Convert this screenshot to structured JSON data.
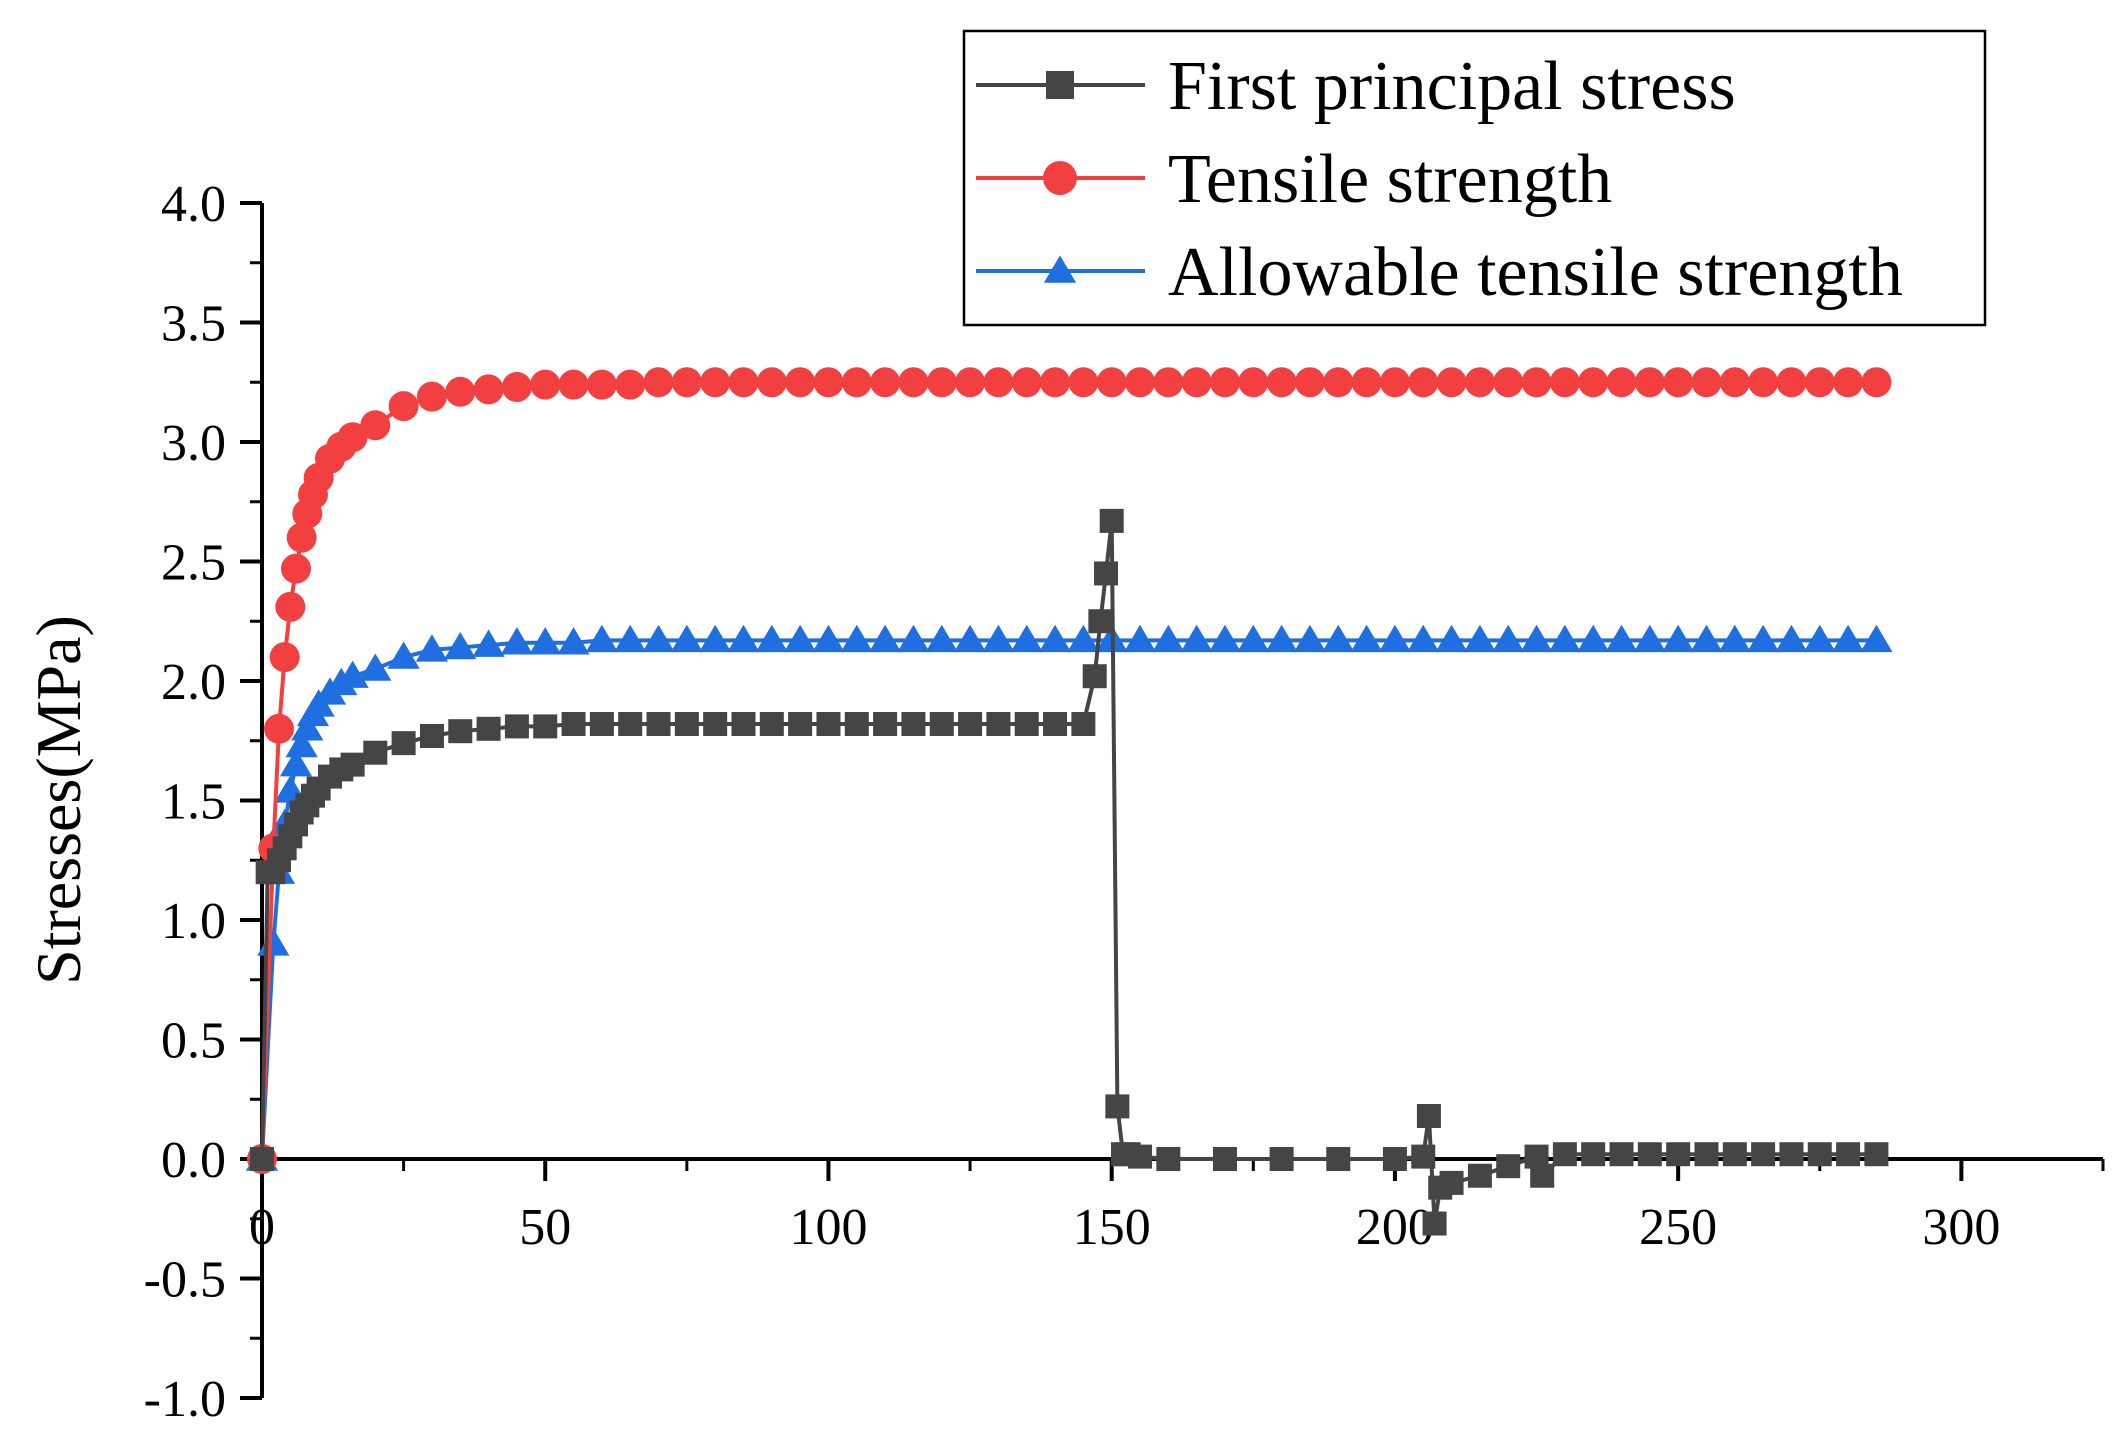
{
  "chart_data": {
    "type": "line",
    "title": "",
    "xlabel": "",
    "ylabel": "Stresses(MPa)",
    "xlim": [
      0,
      325
    ],
    "ylim": [
      -1.0,
      4.0
    ],
    "xticks": [
      0,
      50,
      100,
      150,
      200,
      250,
      300
    ],
    "xtick_labels": [
      "0",
      "50",
      "100",
      "150",
      "200",
      "250",
      "300"
    ],
    "yticks": [
      -1.0,
      -0.5,
      0.0,
      0.5,
      1.0,
      1.5,
      2.0,
      2.5,
      3.0,
      3.5,
      4.0
    ],
    "ytick_labels": [
      "-1.0",
      "-0.5",
      "0.0",
      "0.5",
      "1.0",
      "1.5",
      "2.0",
      "2.5",
      "3.0",
      "3.5",
      "4.0"
    ],
    "grid": false,
    "legend_position": "top-right",
    "series": [
      {
        "name": "First principal stress",
        "color": "#454545",
        "marker": "square",
        "x": [
          0,
          1,
          2,
          3,
          4,
          5,
          6,
          7,
          8,
          9,
          10,
          12,
          14,
          16,
          20,
          25,
          30,
          35,
          40,
          45,
          50,
          55,
          60,
          65,
          70,
          75,
          80,
          85,
          90,
          95,
          100,
          105,
          110,
          115,
          120,
          125,
          130,
          135,
          140,
          145,
          147,
          148,
          149,
          150,
          151,
          152,
          153,
          155,
          160,
          170,
          180,
          190,
          200,
          205,
          206,
          207,
          208,
          210,
          215,
          220,
          225,
          226,
          230,
          235,
          240,
          245,
          250,
          255,
          260,
          265,
          270,
          275,
          280,
          285
        ],
        "y": [
          0.0,
          1.2,
          1.2,
          1.25,
          1.3,
          1.35,
          1.4,
          1.45,
          1.48,
          1.52,
          1.55,
          1.6,
          1.63,
          1.65,
          1.7,
          1.74,
          1.77,
          1.79,
          1.8,
          1.81,
          1.81,
          1.82,
          1.82,
          1.82,
          1.82,
          1.82,
          1.82,
          1.82,
          1.82,
          1.82,
          1.82,
          1.82,
          1.82,
          1.82,
          1.82,
          1.82,
          1.82,
          1.82,
          1.82,
          1.82,
          2.02,
          2.25,
          2.45,
          2.67,
          0.22,
          0.02,
          0.02,
          0.01,
          0.0,
          0.0,
          0.0,
          0.0,
          0.0,
          0.01,
          0.18,
          -0.27,
          -0.12,
          -0.1,
          -0.07,
          -0.03,
          0.01,
          -0.07,
          0.02,
          0.02,
          0.02,
          0.02,
          0.02,
          0.02,
          0.02,
          0.02,
          0.02,
          0.02,
          0.02,
          0.02
        ]
      },
      {
        "name": "Tensile strength",
        "color": "#f24040",
        "marker": "circle",
        "x": [
          0,
          2,
          3,
          4,
          5,
          6,
          7,
          8,
          9,
          10,
          12,
          14,
          16,
          20,
          25,
          30,
          35,
          40,
          45,
          50,
          55,
          60,
          65,
          70,
          75,
          80,
          85,
          90,
          95,
          100,
          105,
          110,
          115,
          120,
          125,
          130,
          135,
          140,
          145,
          150,
          155,
          160,
          165,
          170,
          175,
          180,
          185,
          190,
          195,
          200,
          205,
          210,
          215,
          220,
          225,
          230,
          235,
          240,
          245,
          250,
          255,
          260,
          265,
          270,
          275,
          280,
          285
        ],
        "y": [
          0.0,
          1.3,
          1.8,
          2.1,
          2.31,
          2.47,
          2.6,
          2.7,
          2.78,
          2.85,
          2.93,
          2.98,
          3.02,
          3.07,
          3.15,
          3.19,
          3.21,
          3.22,
          3.23,
          3.24,
          3.24,
          3.24,
          3.24,
          3.25,
          3.25,
          3.25,
          3.25,
          3.25,
          3.25,
          3.25,
          3.25,
          3.25,
          3.25,
          3.25,
          3.25,
          3.25,
          3.25,
          3.25,
          3.25,
          3.25,
          3.25,
          3.25,
          3.25,
          3.25,
          3.25,
          3.25,
          3.25,
          3.25,
          3.25,
          3.25,
          3.25,
          3.25,
          3.25,
          3.25,
          3.25,
          3.25,
          3.25,
          3.25,
          3.25,
          3.25,
          3.25,
          3.25,
          3.25,
          3.25,
          3.25,
          3.25,
          3.25
        ]
      },
      {
        "name": "Allowable tensile strength",
        "color": "#1f6fe0",
        "marker": "triangle",
        "x": [
          0,
          2,
          3,
          4,
          5,
          6,
          7,
          8,
          9,
          10,
          12,
          14,
          16,
          20,
          25,
          30,
          35,
          40,
          45,
          50,
          55,
          60,
          65,
          70,
          75,
          80,
          85,
          90,
          95,
          100,
          105,
          110,
          115,
          120,
          125,
          130,
          135,
          140,
          145,
          150,
          155,
          160,
          165,
          170,
          175,
          180,
          185,
          190,
          195,
          200,
          205,
          210,
          215,
          220,
          225,
          230,
          235,
          240,
          245,
          250,
          255,
          260,
          265,
          270,
          275,
          280,
          285
        ],
        "y": [
          0.0,
          0.9,
          1.2,
          1.4,
          1.54,
          1.65,
          1.73,
          1.8,
          1.86,
          1.9,
          1.95,
          1.99,
          2.02,
          2.05,
          2.1,
          2.13,
          2.14,
          2.15,
          2.16,
          2.16,
          2.16,
          2.17,
          2.17,
          2.17,
          2.17,
          2.17,
          2.17,
          2.17,
          2.17,
          2.17,
          2.17,
          2.17,
          2.17,
          2.17,
          2.17,
          2.17,
          2.17,
          2.17,
          2.17,
          2.17,
          2.17,
          2.17,
          2.17,
          2.17,
          2.17,
          2.17,
          2.17,
          2.17,
          2.17,
          2.17,
          2.17,
          2.17,
          2.17,
          2.17,
          2.17,
          2.17,
          2.17,
          2.17,
          2.17,
          2.17,
          2.17,
          2.17,
          2.17,
          2.17,
          2.17,
          2.17,
          2.17
        ]
      }
    ]
  }
}
